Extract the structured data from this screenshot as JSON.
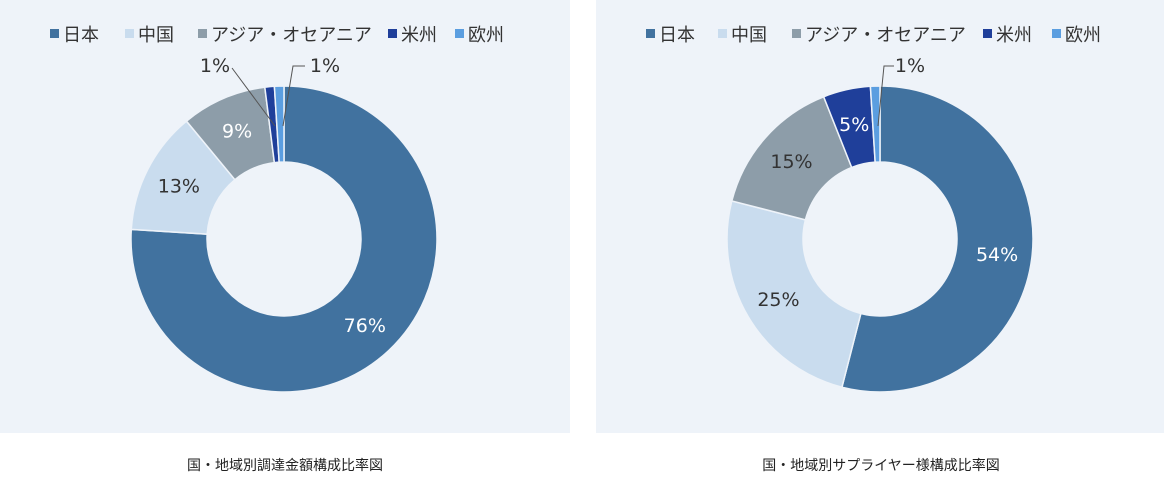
{
  "colors": {
    "panel_bg": "#eef3f9",
    "series": [
      "#41729f",
      "#c9dcee",
      "#8d9da9",
      "#1f3f9a",
      "#5b9ee0"
    ],
    "label_light": "#ffffff",
    "label_dark": "#333333"
  },
  "chart_data": [
    {
      "type": "pie",
      "subtype": "donut",
      "legend_position": "top",
      "categories": [
        "日本",
        "中国",
        "アジア・オセアニア",
        "米州",
        "欧州"
      ],
      "values": [
        76,
        13,
        9,
        1,
        1
      ],
      "labels": [
        "76%",
        "13%",
        "9%",
        "1%",
        "1%"
      ],
      "caption": "国・地域別調達金額構成比率図"
    },
    {
      "type": "pie",
      "subtype": "donut",
      "legend_position": "top",
      "categories": [
        "日本",
        "中国",
        "アジア・オセアニア",
        "米州",
        "欧州"
      ],
      "values": [
        54,
        25,
        15,
        5,
        1
      ],
      "labels": [
        "54%",
        "25%",
        "15%",
        "5%",
        "1%"
      ],
      "caption": "国・地域別サプライヤー様構成比率図"
    }
  ]
}
